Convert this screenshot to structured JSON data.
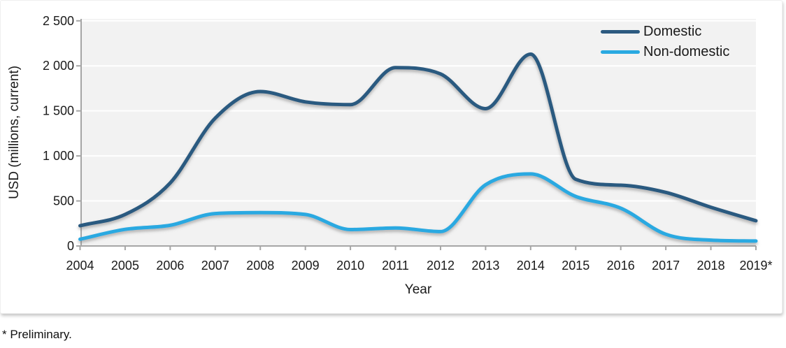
{
  "chart_data": {
    "type": "line",
    "title": "",
    "xlabel": "Year",
    "ylabel": "USD (millions, current)",
    "x": [
      2004,
      2005,
      2006,
      2007,
      2008,
      2009,
      2010,
      2011,
      2012,
      2013,
      2014,
      2015,
      2016,
      2017,
      2018,
      2019
    ],
    "x_tick_labels": [
      "2004",
      "2005",
      "2006",
      "2007",
      "2008",
      "2009",
      "2010",
      "2011",
      "2012",
      "2013",
      "2014",
      "2015",
      "2016",
      "2017",
      "2018",
      "2019*"
    ],
    "y_ticks": [
      0,
      500,
      1000,
      1500,
      2000,
      2500
    ],
    "y_tick_labels": [
      "0",
      "500",
      "1 000",
      "1 500",
      "2 000",
      "2 500"
    ],
    "ylim": [
      0,
      2500
    ],
    "grid": "horizontal",
    "legend_position": "top-right",
    "series": [
      {
        "name": "Domestic",
        "color": "#2c5a80",
        "values": [
          225,
          350,
          700,
          1420,
          1715,
          1600,
          1570,
          1980,
          1910,
          1525,
          2130,
          740,
          675,
          595,
          430,
          280
        ]
      },
      {
        "name": "Non-domestic",
        "color": "#29a9e1",
        "values": [
          75,
          185,
          230,
          360,
          370,
          350,
          182,
          200,
          160,
          680,
          800,
          550,
          420,
          130,
          65,
          55
        ]
      }
    ]
  },
  "colors": {
    "plot_background": "#f2f2f2",
    "gridline": "#ffffff",
    "axis": "#a6a6a6",
    "text": "#1a1a1a"
  },
  "footnote": "* Preliminary."
}
